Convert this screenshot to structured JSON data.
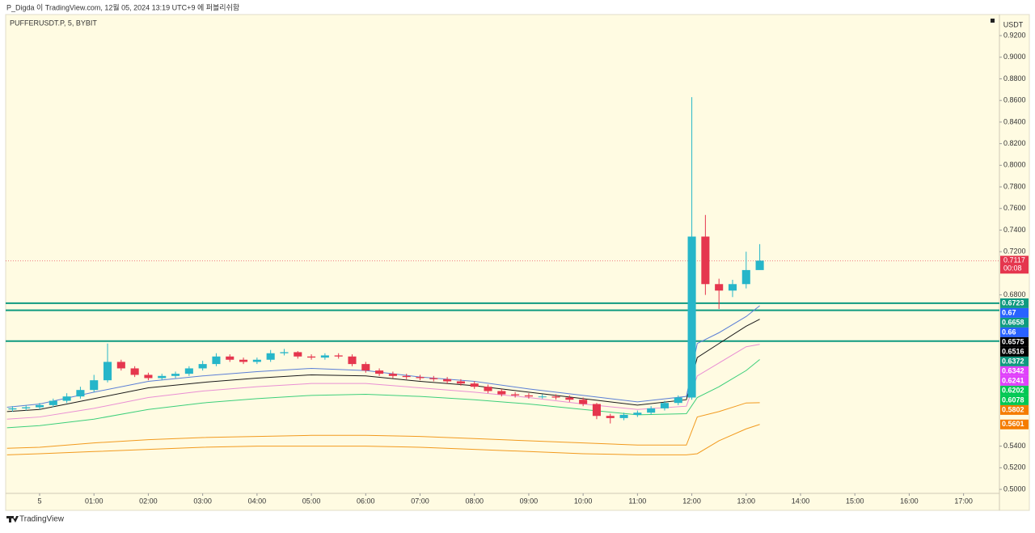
{
  "header": {
    "publisher": "P_Digda 이 TradingView.com, 12월 05, 2024 13:19 UTC+9 에 퍼블리쉬함",
    "footer": "TradingView"
  },
  "chart_data": {
    "type": "candlestick",
    "title": "PUFFERUSDT.P, 5, BYBIT",
    "currency": "USDT",
    "up_color": "#26b6c9",
    "down_color": "#e5364e",
    "x": [
      -0.5,
      -0.25,
      0,
      0.25,
      0.5,
      0.75,
      1,
      1.25,
      1.5,
      1.75,
      2,
      2.25,
      2.5,
      2.75,
      3,
      3.25,
      3.5,
      3.75,
      4,
      4.25,
      4.5,
      4.75,
      5,
      5.25,
      5.5,
      5.75,
      6,
      6.25,
      6.5,
      6.75,
      7,
      7.25,
      7.5,
      7.75,
      8,
      8.25,
      8.5,
      8.75,
      9,
      9.25,
      9.5,
      9.75,
      10,
      10.25,
      10.5,
      10.75,
      11,
      11.25,
      11.5,
      11.75,
      12,
      12.25,
      12.5,
      12.75,
      13,
      13.25
    ],
    "open": [
      0.574,
      0.575,
      0.576,
      0.578,
      0.582,
      0.586,
      0.592,
      0.601,
      0.618,
      0.612,
      0.606,
      0.603,
      0.605,
      0.607,
      0.612,
      0.616,
      0.623,
      0.62,
      0.618,
      0.62,
      0.626,
      0.627,
      0.623,
      0.622,
      0.624,
      0.623,
      0.616,
      0.61,
      0.607,
      0.605,
      0.604,
      0.603,
      0.602,
      0.6,
      0.598,
      0.595,
      0.591,
      0.588,
      0.587,
      0.586,
      0.586,
      0.585,
      0.583,
      0.579,
      0.568,
      0.566,
      0.569,
      0.571,
      0.575,
      0.58,
      0.585,
      0.734,
      0.69,
      0.684,
      0.69,
      0.703
    ],
    "high": [
      0.577,
      0.578,
      0.58,
      0.584,
      0.589,
      0.595,
      0.606,
      0.635,
      0.62,
      0.614,
      0.608,
      0.607,
      0.609,
      0.614,
      0.619,
      0.626,
      0.625,
      0.622,
      0.622,
      0.629,
      0.63,
      0.628,
      0.625,
      0.626,
      0.626,
      0.625,
      0.618,
      0.612,
      0.609,
      0.607,
      0.606,
      0.605,
      0.604,
      0.602,
      0.6,
      0.597,
      0.593,
      0.59,
      0.589,
      0.588,
      0.588,
      0.587,
      0.585,
      0.58,
      0.57,
      0.571,
      0.573,
      0.577,
      0.582,
      0.587,
      0.863,
      0.754,
      0.695,
      0.694,
      0.72,
      0.727
    ],
    "low": [
      0.572,
      0.573,
      0.574,
      0.576,
      0.58,
      0.584,
      0.59,
      0.599,
      0.61,
      0.604,
      0.601,
      0.601,
      0.603,
      0.605,
      0.61,
      0.614,
      0.618,
      0.616,
      0.616,
      0.618,
      0.624,
      0.621,
      0.62,
      0.62,
      0.621,
      0.614,
      0.608,
      0.605,
      0.603,
      0.602,
      0.601,
      0.6,
      0.598,
      0.596,
      0.593,
      0.589,
      0.586,
      0.585,
      0.584,
      0.584,
      0.583,
      0.581,
      0.577,
      0.565,
      0.561,
      0.564,
      0.567,
      0.569,
      0.573,
      0.578,
      0.583,
      0.68,
      0.667,
      0.678,
      0.686,
      0.705
    ],
    "close": [
      0.575,
      0.576,
      0.578,
      0.582,
      0.586,
      0.592,
      0.601,
      0.618,
      0.612,
      0.606,
      0.603,
      0.605,
      0.607,
      0.612,
      0.616,
      0.623,
      0.62,
      0.618,
      0.62,
      0.626,
      0.627,
      0.623,
      0.622,
      0.624,
      0.623,
      0.616,
      0.61,
      0.607,
      0.605,
      0.604,
      0.603,
      0.602,
      0.6,
      0.598,
      0.595,
      0.591,
      0.588,
      0.587,
      0.586,
      0.586,
      0.585,
      0.583,
      0.579,
      0.568,
      0.566,
      0.569,
      0.571,
      0.575,
      0.58,
      0.585,
      0.734,
      0.69,
      0.684,
      0.69,
      0.703,
      0.7117
    ],
    "line_x": [
      -0.6,
      0,
      1,
      2,
      3,
      4,
      5,
      6,
      7,
      8,
      9,
      10,
      11,
      11.9,
      12.1,
      12.5,
      13,
      13.25
    ],
    "lines": [
      {
        "color": "#5b7fd6",
        "values": [
          0.576,
          0.579,
          0.59,
          0.6,
          0.605,
          0.609,
          0.612,
          0.61,
          0.604,
          0.6,
          0.593,
          0.587,
          0.581,
          0.586,
          0.635,
          0.645,
          0.66,
          0.67
        ]
      },
      {
        "color": "#1a1a1a",
        "values": [
          0.572,
          0.574,
          0.584,
          0.594,
          0.599,
          0.603,
          0.606,
          0.605,
          0.6,
          0.596,
          0.59,
          0.584,
          0.578,
          0.583,
          0.622,
          0.635,
          0.651,
          0.6575
        ]
      },
      {
        "color": "#e98fd3",
        "values": [
          0.565,
          0.567,
          0.575,
          0.585,
          0.591,
          0.595,
          0.598,
          0.598,
          0.594,
          0.59,
          0.585,
          0.579,
          0.574,
          0.577,
          0.605,
          0.617,
          0.632,
          0.6342
        ]
      },
      {
        "color": "#3ccf7a",
        "values": [
          0.557,
          0.559,
          0.565,
          0.574,
          0.58,
          0.584,
          0.587,
          0.588,
          0.586,
          0.583,
          0.579,
          0.574,
          0.569,
          0.57,
          0.585,
          0.595,
          0.61,
          0.6202
        ]
      },
      {
        "color": "#f29a1e",
        "values": [
          0.538,
          0.539,
          0.543,
          0.546,
          0.548,
          0.549,
          0.55,
          0.55,
          0.549,
          0.547,
          0.545,
          0.543,
          0.541,
          0.541,
          0.567,
          0.572,
          0.58,
          0.5802
        ]
      },
      {
        "color": "#f29a1e",
        "values": [
          0.532,
          0.533,
          0.535,
          0.537,
          0.539,
          0.54,
          0.54,
          0.54,
          0.539,
          0.537,
          0.535,
          0.533,
          0.532,
          0.532,
          0.533,
          0.545,
          0.556,
          0.5601
        ]
      }
    ],
    "hlines": [
      {
        "value": 0.6723,
        "color": "#0f9a80"
      },
      {
        "value": 0.6658,
        "color": "#0f9a80"
      },
      {
        "value": 0.6372,
        "color": "#0f9a80"
      }
    ],
    "last_price": {
      "value": 0.7117,
      "countdown": "00:08",
      "color": "#e5364e"
    },
    "price_labels": [
      {
        "value": 0.6723,
        "color": "#0f9a80"
      },
      {
        "value": 0.67,
        "color": "#2962ff"
      },
      {
        "value": 0.6658,
        "color": "#0f9a80"
      },
      {
        "value": 0.66,
        "color": "#2962ff"
      },
      {
        "value": 0.6575,
        "color": "#000000"
      },
      {
        "value": 0.6516,
        "color": "#000000"
      },
      {
        "value": 0.6372,
        "color": "#0f9a80"
      },
      {
        "value": 0.6342,
        "color": "#e040fb"
      },
      {
        "value": 0.6241,
        "color": "#e040fb"
      },
      {
        "value": 0.6202,
        "color": "#00c853"
      },
      {
        "value": 0.6078,
        "color": "#00c853"
      },
      {
        "value": 0.5802,
        "color": "#f57c00"
      },
      {
        "value": 0.5601,
        "color": "#f57c00"
      }
    ],
    "xlim": [
      -0.625,
      17.66
    ],
    "ylim": [
      0.4963,
      0.9395
    ],
    "xticks": [
      {
        "value": 0,
        "label": "5"
      },
      {
        "value": 1,
        "label": "01:00"
      },
      {
        "value": 2,
        "label": "02:00"
      },
      {
        "value": 3,
        "label": "03:00"
      },
      {
        "value": 4,
        "label": "04:00"
      },
      {
        "value": 5,
        "label": "05:00"
      },
      {
        "value": 6,
        "label": "06:00"
      },
      {
        "value": 7,
        "label": "07:00"
      },
      {
        "value": 8,
        "label": "08:00"
      },
      {
        "value": 9,
        "label": "09:00"
      },
      {
        "value": 10,
        "label": "10:00"
      },
      {
        "value": 11,
        "label": "11:00"
      },
      {
        "value": 12,
        "label": "12:00"
      },
      {
        "value": 13,
        "label": "13:00"
      },
      {
        "value": 14,
        "label": "14:00"
      },
      {
        "value": 15,
        "label": "15:00"
      },
      {
        "value": 16,
        "label": "16:00"
      },
      {
        "value": 17,
        "label": "17:00"
      }
    ],
    "yticks": [
      {
        "value": 0.92,
        "label": "0.9200"
      },
      {
        "value": 0.9,
        "label": "0.9000"
      },
      {
        "value": 0.88,
        "label": "0.8800"
      },
      {
        "value": 0.86,
        "label": "0.8600"
      },
      {
        "value": 0.84,
        "label": "0.8400"
      },
      {
        "value": 0.82,
        "label": "0.8200"
      },
      {
        "value": 0.8,
        "label": "0.8000"
      },
      {
        "value": 0.78,
        "label": "0.7800"
      },
      {
        "value": 0.76,
        "label": "0.7600"
      },
      {
        "value": 0.74,
        "label": "0.7400"
      },
      {
        "value": 0.72,
        "label": "0.7200"
      },
      {
        "value": 0.68,
        "label": "0.6800"
      },
      {
        "value": 0.54,
        "label": "0.5400"
      },
      {
        "value": 0.52,
        "label": "0.5200"
      },
      {
        "value": 0.5,
        "label": "0.5000"
      }
    ]
  }
}
